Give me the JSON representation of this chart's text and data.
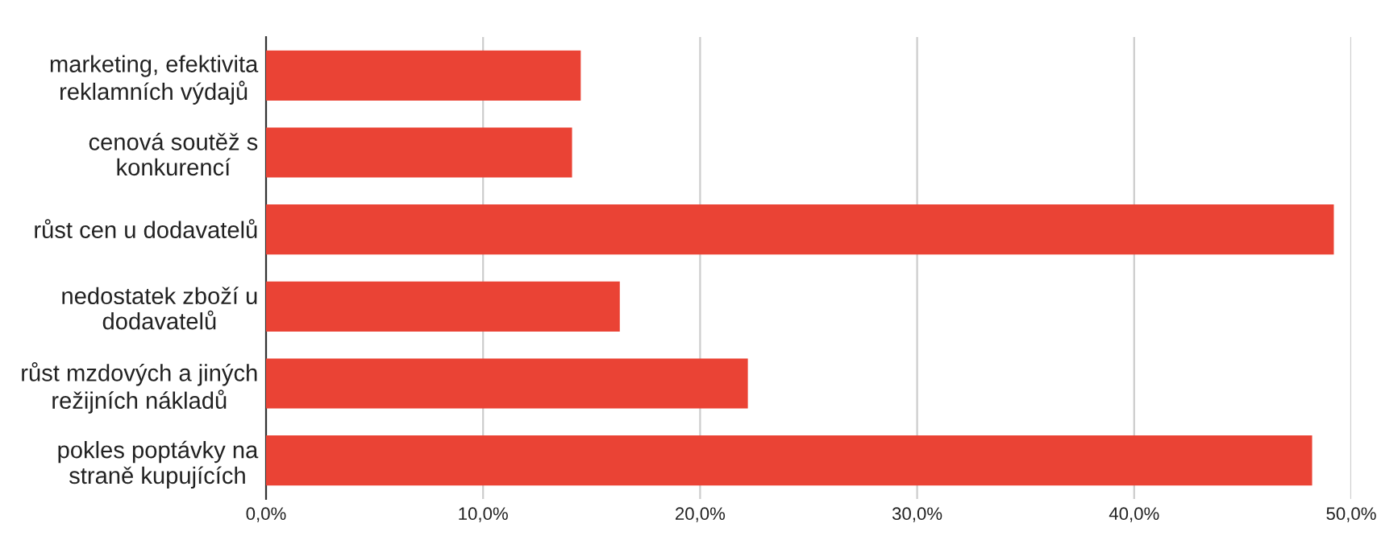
{
  "chart_data": {
    "type": "bar",
    "orientation": "horizontal",
    "categories": [
      "marketing, efektivita\nreklamních výdajů",
      "cenová soutěž s\nkonkurencí",
      "růst cen u dodavatelů",
      "nedostatek zboží u\ndodavatelů",
      "růst mzdových a jiných\nrežijních nákladů",
      "pokles poptávky na\nstraně kupujících"
    ],
    "values": [
      14.5,
      14.1,
      49.2,
      16.3,
      22.2,
      48.2
    ],
    "color": "#ea4335",
    "xlim": [
      0,
      50
    ],
    "xticks": [
      {
        "value": 0,
        "label": "0,0%"
      },
      {
        "value": 10,
        "label": "10,0%"
      },
      {
        "value": 20,
        "label": "20,0%"
      },
      {
        "value": 30,
        "label": "30,0%"
      },
      {
        "value": 40,
        "label": "40,0%"
      },
      {
        "value": 50,
        "label": "50,0%"
      }
    ],
    "grid": "x"
  }
}
